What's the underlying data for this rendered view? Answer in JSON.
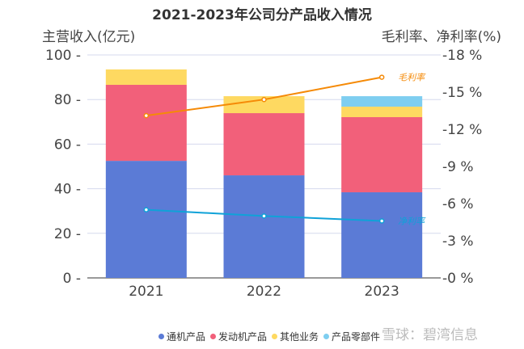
{
  "chart_data": {
    "type": "bar",
    "title": "2021-2023年公司分产品收入情况",
    "ylabel": "主营收入(亿元)",
    "y2label": "毛利率、净利率(%)",
    "categories": [
      "2021",
      "2022",
      "2023"
    ],
    "ylim": [
      0,
      100
    ],
    "yticks": [
      "0",
      "20",
      "40",
      "60",
      "80",
      "100"
    ],
    "y2lim": [
      0,
      18
    ],
    "y2ticks": [
      "0 %",
      "3 %",
      "6 %",
      "9 %",
      "12 %",
      "15 %",
      "18 %"
    ],
    "grid": true,
    "legend_position": "bottom",
    "stacked": true,
    "series": [
      {
        "name": "通机产品",
        "color": "#5b7bd6",
        "values": [
          52.5,
          46.0,
          38.4
        ]
      },
      {
        "name": "发动机产品",
        "color": "#f2607a",
        "values": [
          34.1,
          27.9,
          33.7
        ]
      },
      {
        "name": "其他业务",
        "color": "#fed961",
        "values": [
          6.9,
          7.6,
          4.7
        ]
      },
      {
        "name": "产品零部件",
        "color": "#7ecef0",
        "values": [
          0,
          0,
          4.7
        ]
      }
    ],
    "lines": [
      {
        "name": "毛利率",
        "color": "#f58a07",
        "axis": "right",
        "values": [
          13.1,
          14.4,
          16.2
        ]
      },
      {
        "name": "净利率",
        "color": "#0fa2d8",
        "axis": "right",
        "values": [
          5.5,
          5.0,
          4.6
        ]
      }
    ]
  },
  "watermark": "雪球：碧湾信息"
}
